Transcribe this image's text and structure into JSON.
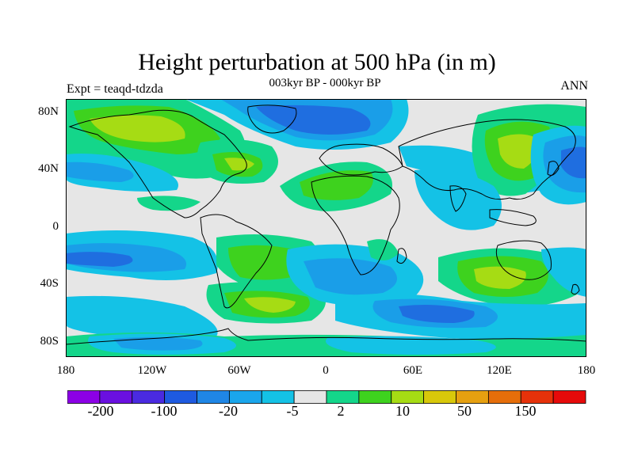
{
  "title": "Height perturbation at 500 hPa (in m)",
  "experiment_label": "Expt = teaqd-tdzda",
  "period_label": "003kyr BP - 000kyr BP",
  "season_label": "ANN",
  "y_ticks": [
    "80N",
    "40N",
    "0",
    "40S",
    "80S"
  ],
  "x_ticks": [
    "180",
    "120W",
    "60W",
    "0",
    "60E",
    "120E",
    "180"
  ],
  "colorbar": {
    "colors": [
      "#8c00e6",
      "#6a10e0",
      "#4a2ae0",
      "#1e5ae0",
      "#1f86e6",
      "#1aa6ec",
      "#14c2e6",
      "#e6e6e6",
      "#14d68a",
      "#3ed21e",
      "#a6dc14",
      "#d8c80a",
      "#e6a010",
      "#e66e0a",
      "#e6320a",
      "#e60a0a"
    ],
    "labels": [
      "-200",
      "-100",
      "-20",
      "-5",
      "2",
      "10",
      "50",
      "150"
    ]
  },
  "field_colors": {
    "background": "#e6e6e6",
    "blue_dark": "#1f6ee0",
    "blue_mid": "#1a9ee8",
    "cyan": "#14c2e6",
    "green_light": "#14d68a",
    "green": "#3ed21e",
    "yellow_green": "#a6dc14"
  },
  "chart_data": {
    "type": "heatmap",
    "title": "Height perturbation at 500 hPa (in m)",
    "subtitle": "003kyr BP - 000kyr BP",
    "x_range": [
      -180,
      180
    ],
    "y_range": [
      -90,
      90
    ],
    "levels": [
      -200,
      -100,
      -20,
      -5,
      2,
      10,
      50,
      150
    ],
    "regions": [
      {
        "name": "north-atlantic-arctic-low",
        "lon": -20,
        "lat": 75,
        "rx": 55,
        "ry": 12,
        "band": "blue_dark"
      },
      {
        "name": "siberia-high",
        "lon": 115,
        "lat": 50,
        "rx": 20,
        "ry": 15,
        "band": "yellow_green"
      },
      {
        "name": "north-america-high",
        "lon": -130,
        "lat": 70,
        "rx": 45,
        "ry": 12,
        "band": "yellow_green"
      },
      {
        "name": "north-pacific-low",
        "lon": 170,
        "lat": 42,
        "rx": 18,
        "ry": 14,
        "band": "blue_dark"
      },
      {
        "name": "south-indian-high",
        "lon": 120,
        "lat": -40,
        "rx": 22,
        "ry": 12,
        "band": "yellow_green"
      },
      {
        "name": "south-atlantic-high",
        "lon": -45,
        "lat": -55,
        "rx": 25,
        "ry": 10,
        "band": "yellow_green"
      },
      {
        "name": "southern-ocean-low",
        "lon": 90,
        "lat": -55,
        "rx": 45,
        "ry": 10,
        "band": "blue_dark"
      }
    ]
  }
}
